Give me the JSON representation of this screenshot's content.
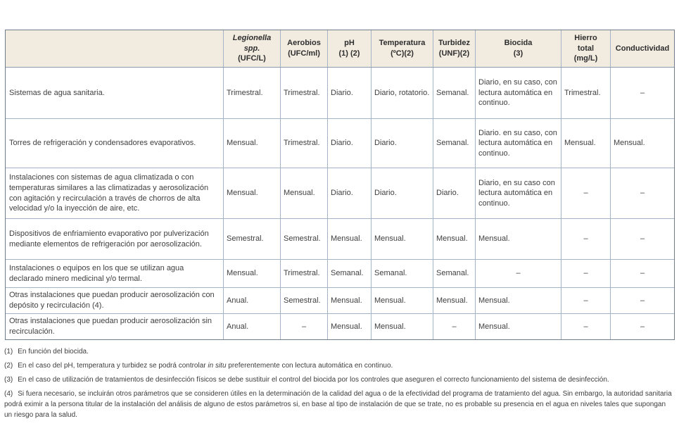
{
  "colors": {
    "header_bg": "#f1ebe0",
    "border": "#a3b4c7",
    "outer_border": "#6f7d8c"
  },
  "table": {
    "dash": "–",
    "header": {
      "corner": "",
      "legionella": {
        "italic": "Legionella\nspp.",
        "rest": "(UFC/L)"
      },
      "cols": [
        {
          "text": "Aerobios\n(UFC/ml)"
        },
        {
          "text": "pH\n(1) (2)"
        },
        {
          "text": "Temperatura\n(ºC)(2)"
        },
        {
          "text": "Turbidez\n(UNF)(2)"
        },
        {
          "text": "Biocida\n(3)"
        },
        {
          "text": "Hierro\ntotal\n(mg/L)"
        },
        {
          "text": "Conductividad"
        }
      ]
    },
    "rows": [
      {
        "label": "Sistemas de agua sanitaria.",
        "cells": [
          "Trimestral.",
          "Trimestral.",
          "Diario.",
          "Diario, rotatorio.",
          "Semanal.",
          "Diario, en su caso, con lectura automática en continuo.",
          "Trimestral.",
          "–"
        ]
      },
      {
        "label": "Torres de refrigeración y condensadores evaporativos.",
        "cells": [
          "Mensual.",
          "Trimestral.",
          "Diario.",
          "Diario.",
          "Semanal.",
          "Diario. en su caso, con lectura automática en continuo.",
          "Mensual.",
          "Mensual."
        ]
      },
      {
        "label": "Instalaciones con sistemas de agua climatizada o con temperaturas similares a las climatizadas y aerosolización con agitación y recirculación a través de chorros de alta velocidad y/o la inyección de aire, etc.",
        "cells": [
          "Mensual.",
          "Mensual.",
          "Diario.",
          "Diario.",
          "Diario.",
          "Diario, en su caso con lectura automática en continuo.",
          "–",
          "–"
        ]
      },
      {
        "label": "Dispositivos de enfriamiento evaporativo por pulverización mediante elementos de refrigeración por aerosolización.",
        "cells": [
          "Semestral.",
          "Semestral.",
          "Mensual.",
          "Mensual.",
          "Mensual.",
          "Mensual.",
          "–",
          "–"
        ]
      },
      {
        "label": "Instalaciones o equipos en los que se utilizan agua declarado minero medicinal y/o termal.",
        "cells": [
          "Mensual.",
          "Trimestral.",
          "Semanal.",
          "Semanal.",
          "Semanal.",
          "–",
          "–",
          "–"
        ]
      },
      {
        "label": "Otras instalaciones que puedan producir aerosolización con depósito y recirculación (4).",
        "cells": [
          "Anual.",
          "Semestral.",
          "Mensual.",
          "Mensual.",
          "Mensual.",
          "Mensual.",
          "–",
          "–"
        ]
      },
      {
        "label": "Otras instalaciones que puedan producir aerosolización sin recirculación.",
        "cells": [
          "Anual.",
          "–",
          "Mensual.",
          "Mensual.",
          "–",
          "Mensual.",
          "–",
          "–"
        ]
      }
    ]
  },
  "footnotes": [
    {
      "num": "(1)",
      "pre": "En función del biocida.",
      "italic": "",
      "post": ""
    },
    {
      "num": "(2)",
      "pre": "En el caso del pH, temperatura y turbidez se podrá controlar ",
      "italic": "in situ",
      "post": " preferentemente con lectura automática en continuo."
    },
    {
      "num": "(3)",
      "pre": "En el caso de utilización de tratamientos de desinfección físicos se debe sustituir el control del biocida por los controles que aseguren el correcto funcionamiento del sistema de desinfección.",
      "italic": "",
      "post": ""
    },
    {
      "num": "(4)",
      "pre": "Si fuera necesario, se incluirán otros parámetros que se consideren útiles en la determinación de la calidad del agua o de la efectividad del programa de tratamiento del agua. Sin embargo, la autoridad sanitaria podrá eximir a la persona titular de la instalación del análisis de alguno de estos parámetros si, en base al tipo de instalación de que se trate, no es probable su presencia en el agua en niveles tales que supongan un riesgo para la salud.",
      "italic": "",
      "post": ""
    }
  ]
}
